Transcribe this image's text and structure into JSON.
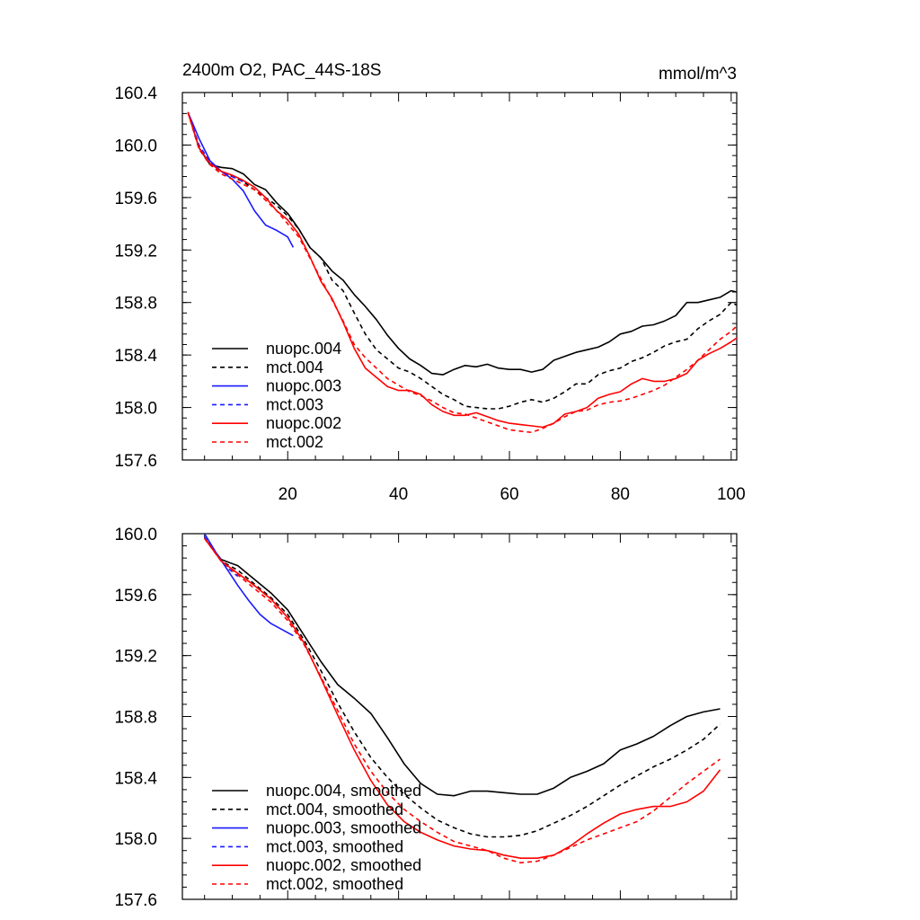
{
  "page": {
    "title": "2400m O2, PAC_44S-18S",
    "units": "mmol/m^3"
  },
  "colors": {
    "black": "#000000",
    "blue": "#1a1aff",
    "red": "#ff0000"
  },
  "chart_data": [
    {
      "type": "line",
      "title": "2400m O2, PAC_44S-18S",
      "units_label": "mmol/m^3",
      "xlim": [
        1,
        101
      ],
      "ylim": [
        157.6,
        160.4
      ],
      "x_ticks": [
        20,
        40,
        60,
        80,
        100
      ],
      "x_tick_labels": [
        "20",
        "40",
        "60",
        "80",
        "100"
      ],
      "y_ticks": [
        157.6,
        158.0,
        158.4,
        158.8,
        159.2,
        159.6,
        160.0,
        160.4
      ],
      "y_tick_labels": [
        "157.6",
        "158.0",
        "158.4",
        "158.8",
        "159.2",
        "159.6",
        "160.0",
        "160.4"
      ],
      "legend_position": "lower-left",
      "series": [
        {
          "name": "nuopc.004",
          "color": "#000000",
          "dash": "solid",
          "x": [
            2,
            4,
            6,
            8,
            10,
            12,
            14,
            16,
            18,
            20,
            22,
            24,
            26,
            28,
            30,
            32,
            34,
            36,
            38,
            40,
            42,
            44,
            46,
            48,
            50,
            52,
            54,
            56,
            58,
            60,
            62,
            64,
            66,
            68,
            70,
            72,
            74,
            76,
            78,
            80,
            82,
            84,
            86,
            88,
            90,
            92,
            94,
            96,
            98,
            100,
            101
          ],
          "y": [
            160.25,
            159.98,
            159.85,
            159.83,
            159.82,
            159.78,
            159.7,
            159.66,
            159.56,
            159.48,
            159.36,
            159.22,
            159.14,
            159.04,
            158.97,
            158.86,
            158.77,
            158.67,
            158.55,
            158.45,
            158.37,
            158.32,
            158.26,
            158.25,
            158.29,
            158.32,
            158.31,
            158.33,
            158.3,
            158.29,
            158.29,
            158.27,
            158.29,
            158.36,
            158.39,
            158.42,
            158.44,
            158.46,
            158.5,
            158.56,
            158.58,
            158.62,
            158.63,
            158.66,
            158.7,
            158.8,
            158.8,
            158.82,
            158.84,
            158.89,
            158.88
          ]
        },
        {
          "name": "mct.004",
          "color": "#000000",
          "dash": "dashed",
          "x": [
            2,
            4,
            6,
            8,
            10,
            12,
            14,
            16,
            18,
            20,
            22,
            24,
            26,
            28,
            30,
            32,
            34,
            36,
            38,
            40,
            42,
            44,
            46,
            48,
            50,
            52,
            54,
            56,
            58,
            60,
            62,
            64,
            66,
            68,
            70,
            72,
            74,
            76,
            78,
            80,
            82,
            84,
            86,
            88,
            90,
            92,
            94,
            96,
            98,
            100,
            101
          ],
          "y": [
            160.25,
            159.97,
            159.85,
            159.8,
            159.76,
            159.72,
            159.66,
            159.6,
            159.54,
            159.46,
            159.36,
            159.22,
            159.14,
            158.97,
            158.89,
            158.72,
            158.56,
            158.44,
            158.37,
            158.3,
            158.27,
            158.22,
            158.16,
            158.1,
            158.06,
            158.01,
            158.0,
            157.99,
            157.99,
            158.01,
            158.04,
            158.06,
            158.04,
            158.07,
            158.12,
            158.18,
            158.18,
            158.25,
            158.28,
            158.3,
            158.35,
            158.38,
            158.42,
            158.47,
            158.5,
            158.52,
            158.6,
            158.66,
            158.71,
            158.8,
            158.78
          ]
        },
        {
          "name": "nuopc.003",
          "color": "#1a1aff",
          "dash": "solid",
          "x": [
            2,
            4,
            6,
            8,
            10,
            12,
            14,
            16,
            18,
            20,
            21
          ],
          "y": [
            160.25,
            160.05,
            159.88,
            159.8,
            159.74,
            159.65,
            159.5,
            159.39,
            159.35,
            159.3,
            159.22
          ]
        },
        {
          "name": "mct.003",
          "color": "#1a1aff",
          "dash": "dashed",
          "x": [
            2,
            4,
            6,
            8,
            10,
            12
          ],
          "y": [
            160.25,
            160.0,
            159.87,
            159.8,
            159.76,
            159.72
          ]
        },
        {
          "name": "nuopc.002",
          "color": "#ff0000",
          "dash": "solid",
          "x": [
            2,
            4,
            6,
            8,
            10,
            12,
            14,
            16,
            18,
            20,
            22,
            24,
            26,
            28,
            30,
            32,
            34,
            36,
            38,
            40,
            42,
            44,
            46,
            48,
            50,
            52,
            54,
            56,
            58,
            60,
            62,
            64,
            66,
            68,
            70,
            72,
            74,
            76,
            78,
            80,
            82,
            84,
            86,
            88,
            90,
            92,
            94,
            96,
            98,
            100,
            101
          ],
          "y": [
            160.25,
            159.98,
            159.86,
            159.8,
            159.77,
            159.73,
            159.68,
            159.6,
            159.5,
            159.43,
            159.32,
            159.15,
            158.96,
            158.83,
            158.65,
            158.45,
            158.3,
            158.23,
            158.16,
            158.13,
            158.13,
            158.1,
            158.02,
            157.97,
            157.94,
            157.94,
            157.96,
            157.93,
            157.9,
            157.88,
            157.87,
            157.86,
            157.85,
            157.88,
            157.95,
            157.97,
            158.0,
            158.07,
            158.1,
            158.12,
            158.18,
            158.22,
            158.2,
            158.2,
            158.22,
            158.26,
            158.36,
            158.41,
            158.45,
            158.5,
            158.53
          ]
        },
        {
          "name": "mct.002",
          "color": "#ff0000",
          "dash": "dashed",
          "x": [
            2,
            4,
            6,
            8,
            10,
            12,
            14,
            16,
            18,
            20,
            22,
            24,
            26,
            28,
            30,
            32,
            34,
            36,
            38,
            40,
            42,
            44,
            46,
            48,
            50,
            52,
            54,
            56,
            58,
            60,
            62,
            64,
            66,
            68,
            70,
            72,
            74,
            76,
            78,
            80,
            82,
            84,
            86,
            88,
            90,
            92,
            94,
            96,
            98,
            100,
            101
          ],
          "y": [
            160.25,
            159.97,
            159.85,
            159.78,
            159.74,
            159.7,
            159.66,
            159.58,
            159.5,
            159.4,
            159.3,
            159.14,
            158.98,
            158.82,
            158.66,
            158.48,
            158.38,
            158.3,
            158.22,
            158.17,
            158.12,
            158.09,
            158.05,
            158.0,
            157.96,
            157.95,
            157.92,
            157.89,
            157.86,
            157.83,
            157.82,
            157.81,
            157.84,
            157.88,
            157.93,
            157.97,
            157.98,
            158.02,
            158.04,
            158.05,
            158.07,
            158.1,
            158.13,
            158.17,
            158.23,
            158.29,
            158.36,
            158.44,
            158.52,
            158.58,
            158.62
          ]
        }
      ]
    },
    {
      "type": "line",
      "title": "",
      "xlim": [
        1,
        101
      ],
      "ylim": [
        157.6,
        160.0
      ],
      "x_ticks": [
        20,
        40,
        60,
        80,
        100
      ],
      "x_tick_labels": [
        "",
        "",
        "",
        "",
        ""
      ],
      "y_ticks": [
        157.6,
        158.0,
        158.4,
        158.8,
        159.2,
        159.6,
        160.0
      ],
      "y_tick_labels": [
        "157.6",
        "158.0",
        "158.4",
        "158.8",
        "159.2",
        "159.6",
        "160.0"
      ],
      "legend_position": "lower-left",
      "series": [
        {
          "name": "nuopc.004, smoothed",
          "color": "#000000",
          "dash": "solid",
          "x": [
            5,
            8,
            11,
            14,
            17,
            20,
            23,
            26,
            29,
            32,
            35,
            38,
            41,
            44,
            47,
            50,
            53,
            56,
            59,
            62,
            65,
            68,
            71,
            74,
            77,
            80,
            83,
            86,
            89,
            92,
            95,
            98
          ],
          "y": [
            159.97,
            159.83,
            159.79,
            159.7,
            159.61,
            159.5,
            159.33,
            159.16,
            159.01,
            158.92,
            158.82,
            158.66,
            158.49,
            158.36,
            158.29,
            158.28,
            158.31,
            158.31,
            158.3,
            158.29,
            158.29,
            158.33,
            158.4,
            158.44,
            158.49,
            158.58,
            158.62,
            158.67,
            158.74,
            158.8,
            158.83,
            158.85
          ]
        },
        {
          "name": "mct.004, smoothed",
          "color": "#000000",
          "dash": "dashed",
          "x": [
            5,
            8,
            11,
            14,
            17,
            20,
            23,
            26,
            29,
            32,
            35,
            38,
            41,
            44,
            47,
            50,
            53,
            56,
            59,
            62,
            65,
            68,
            71,
            74,
            77,
            80,
            83,
            86,
            89,
            92,
            95,
            98
          ],
          "y": [
            159.97,
            159.82,
            159.76,
            159.67,
            159.58,
            159.47,
            159.3,
            159.1,
            158.89,
            158.7,
            158.53,
            158.4,
            158.29,
            158.2,
            158.12,
            158.07,
            158.03,
            158.01,
            158.01,
            158.02,
            158.05,
            158.1,
            158.15,
            158.21,
            158.28,
            158.35,
            158.41,
            158.47,
            158.52,
            158.58,
            158.65,
            158.75
          ]
        },
        {
          "name": "nuopc.003, smoothed",
          "color": "#1a1aff",
          "dash": "solid",
          "x": [
            5,
            7,
            9,
            11,
            13,
            15,
            17,
            19,
            21
          ],
          "y": [
            160.0,
            159.88,
            159.77,
            159.66,
            159.56,
            159.47,
            159.41,
            159.37,
            159.33
          ]
        },
        {
          "name": "mct.003, smoothed",
          "color": "#1a1aff",
          "dash": "dashed",
          "x": [
            5,
            7,
            9,
            11
          ],
          "y": [
            159.98,
            159.87,
            159.78,
            159.72
          ]
        },
        {
          "name": "nuopc.002, smoothed",
          "color": "#ff0000",
          "dash": "solid",
          "x": [
            5,
            8,
            11,
            14,
            17,
            20,
            23,
            26,
            29,
            32,
            35,
            38,
            41,
            44,
            47,
            50,
            53,
            56,
            59,
            62,
            65,
            68,
            71,
            74,
            77,
            80,
            83,
            86,
            89,
            92,
            95,
            98
          ],
          "y": [
            159.97,
            159.82,
            159.74,
            159.66,
            159.57,
            159.45,
            159.28,
            159.05,
            158.81,
            158.58,
            158.38,
            158.22,
            158.11,
            158.04,
            157.99,
            157.95,
            157.93,
            157.92,
            157.89,
            157.87,
            157.87,
            157.89,
            157.95,
            158.03,
            158.1,
            158.16,
            158.19,
            158.21,
            158.21,
            158.24,
            158.31,
            158.45
          ]
        },
        {
          "name": "mct.002, smoothed",
          "color": "#ff0000",
          "dash": "dashed",
          "x": [
            5,
            8,
            11,
            14,
            17,
            20,
            23,
            26,
            29,
            32,
            35,
            38,
            41,
            44,
            47,
            50,
            53,
            56,
            59,
            62,
            65,
            68,
            71,
            74,
            77,
            80,
            83,
            86,
            89,
            92,
            95,
            98
          ],
          "y": [
            159.97,
            159.82,
            159.73,
            159.64,
            159.55,
            159.43,
            159.27,
            159.06,
            158.84,
            158.62,
            158.44,
            158.3,
            158.19,
            158.11,
            158.04,
            157.98,
            157.95,
            157.92,
            157.87,
            157.84,
            157.85,
            157.89,
            157.94,
            157.99,
            158.03,
            158.07,
            158.11,
            158.18,
            158.27,
            158.36,
            158.44,
            158.52
          ]
        }
      ]
    }
  ]
}
